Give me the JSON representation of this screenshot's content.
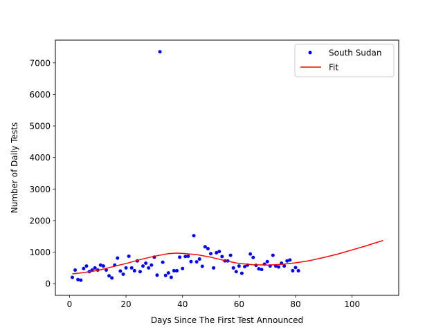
{
  "chart_data": {
    "type": "scatter",
    "title": "",
    "xlabel": "Days Since The First Test Announced",
    "ylabel": "Number of Daily Tests",
    "xlim": [
      -5,
      116.5
    ],
    "ylim": [
      -370,
      7720
    ],
    "x_ticks": [
      0,
      20,
      40,
      60,
      80,
      100
    ],
    "y_ticks": [
      0,
      1000,
      2000,
      3000,
      4000,
      5000,
      6000,
      7000
    ],
    "x_tick_labels": [
      "0",
      "20",
      "40",
      "60",
      "80",
      "100"
    ],
    "y_tick_labels": [
      "0",
      "1000",
      "2000",
      "3000",
      "4000",
      "5000",
      "6000",
      "7000"
    ],
    "grid": false,
    "legend_position": "top-right",
    "series": [
      {
        "name": "South Sudan",
        "kind": "scatter",
        "color": "#0000ff",
        "x": [
          1,
          2,
          3,
          4,
          5,
          6,
          7,
          8,
          9,
          10,
          11,
          12,
          13,
          14,
          15,
          16,
          17,
          18,
          19,
          20,
          21,
          22,
          23,
          24,
          25,
          26,
          27,
          28,
          29,
          30,
          31,
          32,
          33,
          34,
          35,
          36,
          37,
          38,
          39,
          40,
          41,
          42,
          43,
          44,
          45,
          46,
          47,
          48,
          49,
          50,
          51,
          52,
          53,
          54,
          55,
          56,
          57,
          58,
          59,
          60,
          61,
          62,
          63,
          64,
          65,
          66,
          67,
          68,
          69,
          70,
          71,
          72,
          73,
          74,
          75,
          76,
          77,
          78,
          79,
          80,
          81
        ],
        "y": [
          200,
          430,
          130,
          110,
          480,
          560,
          380,
          430,
          500,
          430,
          590,
          560,
          430,
          250,
          180,
          590,
          810,
          400,
          300,
          500,
          870,
          500,
          410,
          720,
          380,
          560,
          650,
          500,
          590,
          840,
          270,
          7350,
          680,
          260,
          340,
          200,
          410,
          410,
          840,
          480,
          860,
          870,
          700,
          1520,
          690,
          780,
          550,
          1170,
          1110,
          950,
          500,
          980,
          1020,
          860,
          720,
          720,
          900,
          500,
          380,
          560,
          330,
          540,
          590,
          940,
          830,
          580,
          470,
          450,
          620,
          700,
          560,
          900,
          560,
          530,
          650,
          560,
          720,
          750,
          410,
          510,
          410
        ]
      },
      {
        "name": "Fit",
        "kind": "line",
        "color": "#ff0000",
        "x": [
          1,
          5,
          10,
          15,
          20,
          25,
          30,
          35,
          38,
          40,
          45,
          50,
          55,
          60,
          65,
          70,
          75,
          80,
          85,
          90,
          95,
          100,
          105,
          111
        ],
        "y": [
          310,
          350,
          420,
          530,
          640,
          760,
          870,
          950,
          970,
          960,
          920,
          840,
          730,
          640,
          600,
          590,
          610,
          660,
          730,
          830,
          940,
          1070,
          1200,
          1370
        ]
      }
    ]
  }
}
